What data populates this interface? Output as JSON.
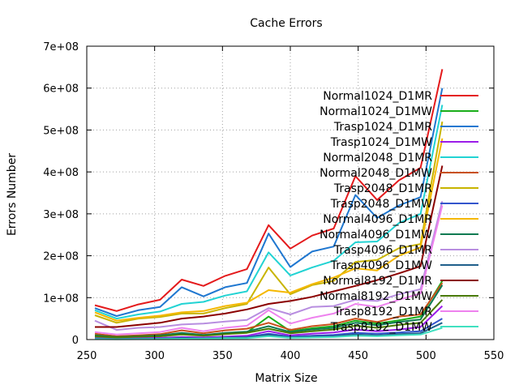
{
  "chart_data": {
    "type": "line",
    "title": "Cache Errors",
    "xlabel": "Matrix Size",
    "ylabel": "Errors Number",
    "xlim": [
      250,
      550
    ],
    "ylim": [
      0,
      700000000
    ],
    "xticks": [
      250,
      300,
      350,
      400,
      450,
      500,
      550
    ],
    "xtick_labels": [
      "250",
      "300",
      "350",
      "400",
      "450",
      "500",
      "550"
    ],
    "yticks": [
      0,
      100000000,
      200000000,
      300000000,
      400000000,
      500000000,
      600000000,
      700000000
    ],
    "ytick_labels": [
      "0",
      "1e+08",
      "2e+08",
      "3e+08",
      "4e+08",
      "5e+08",
      "6e+08",
      "7e+08"
    ],
    "grid": true,
    "legend_position": "right",
    "x": [
      256,
      272,
      288,
      304,
      320,
      336,
      352,
      368,
      384,
      400,
      416,
      432,
      448,
      464,
      480,
      496,
      512
    ],
    "series": [
      {
        "name": "Normal1024_D1MR",
        "color": "#e41a1c",
        "values": [
          82000000,
          68000000,
          84000000,
          95000000,
          143000000,
          128000000,
          152000000,
          168000000,
          273000000,
          217000000,
          248000000,
          265000000,
          390000000,
          333000000,
          380000000,
          410000000,
          645000000
        ]
      },
      {
        "name": "Normal1024_D1MW",
        "color": "#1aae1a",
        "values": [
          6000000,
          4000000,
          6000000,
          8000000,
          13000000,
          10000000,
          14000000,
          17000000,
          55000000,
          20000000,
          27000000,
          32000000,
          45000000,
          38000000,
          46000000,
          55000000,
          140000000
        ]
      },
      {
        "name": "Trasp1024_D1MR",
        "color": "#1f77d0",
        "values": [
          75000000,
          56000000,
          70000000,
          78000000,
          125000000,
          103000000,
          125000000,
          135000000,
          253000000,
          173000000,
          210000000,
          222000000,
          345000000,
          290000000,
          320000000,
          340000000,
          600000000
        ]
      },
      {
        "name": "Trasp1024_D1MW",
        "color": "#9b1de8",
        "values": [
          3000000,
          2000000,
          3000000,
          4000000,
          6000000,
          5000000,
          7000000,
          9000000,
          20000000,
          10000000,
          14000000,
          17000000,
          24000000,
          20000000,
          24000000,
          30000000,
          80000000
        ]
      },
      {
        "name": "Normal2048_D1MR",
        "color": "#22d3d3",
        "values": [
          70000000,
          50000000,
          60000000,
          67000000,
          85000000,
          90000000,
          105000000,
          115000000,
          208000000,
          153000000,
          172000000,
          188000000,
          232000000,
          234000000,
          278000000,
          300000000,
          560000000
        ]
      },
      {
        "name": "Normal2048_D1MW",
        "color": "#c8501a",
        "values": [
          14000000,
          8000000,
          10000000,
          13000000,
          22000000,
          15000000,
          22000000,
          26000000,
          40000000,
          23000000,
          32000000,
          37000000,
          50000000,
          42000000,
          55000000,
          60000000,
          135000000
        ]
      },
      {
        "name": "Trasp2048_D1MR",
        "color": "#c8b400",
        "values": [
          58000000,
          40000000,
          50000000,
          54000000,
          62000000,
          62000000,
          75000000,
          85000000,
          172000000,
          108000000,
          130000000,
          140000000,
          185000000,
          190000000,
          218000000,
          228000000,
          520000000
        ]
      },
      {
        "name": "Trasp2048_D1MW",
        "color": "#3355cc",
        "values": [
          2000000,
          1500000,
          2000000,
          2500000,
          4000000,
          3000000,
          5000000,
          6000000,
          14000000,
          7000000,
          9000000,
          11000000,
          16000000,
          14000000,
          17000000,
          20000000,
          50000000
        ]
      },
      {
        "name": "Normal4096_D1MR",
        "color": "#f5b800",
        "values": [
          65000000,
          45000000,
          52000000,
          57000000,
          65000000,
          68000000,
          80000000,
          88000000,
          118000000,
          112000000,
          132000000,
          148000000,
          170000000,
          165000000,
          200000000,
          220000000,
          480000000
        ]
      },
      {
        "name": "Normal4096_D1MW",
        "color": "#0e7a52",
        "values": [
          10000000,
          6000000,
          8000000,
          10000000,
          16000000,
          11000000,
          16000000,
          19000000,
          32000000,
          18000000,
          24000000,
          28000000,
          40000000,
          34000000,
          42000000,
          48000000,
          130000000
        ]
      },
      {
        "name": "Trasp4096_D1MR",
        "color": "#b88ee0",
        "values": [
          45000000,
          23000000,
          28000000,
          30000000,
          36000000,
          38000000,
          43000000,
          47000000,
          75000000,
          60000000,
          78000000,
          80000000,
          95000000,
          92000000,
          108000000,
          120000000,
          330000000
        ]
      },
      {
        "name": "Trasp4096_D1MW",
        "color": "#1f5f8b",
        "values": [
          1500000,
          1000000,
          1500000,
          2000000,
          3000000,
          2500000,
          4000000,
          5000000,
          11000000,
          5000000,
          7000000,
          8000000,
          12000000,
          10000000,
          13000000,
          15000000,
          40000000
        ]
      },
      {
        "name": "Normal8192_D1MR",
        "color": "#8b0000",
        "values": [
          30000000,
          30000000,
          35000000,
          40000000,
          50000000,
          55000000,
          62000000,
          72000000,
          85000000,
          92000000,
          102000000,
          115000000,
          128000000,
          142000000,
          158000000,
          175000000,
          415000000
        ]
      },
      {
        "name": "Normal8192_D1MW",
        "color": "#4a7a00",
        "values": [
          8000000,
          5000000,
          7000000,
          8000000,
          12000000,
          9000000,
          13000000,
          16000000,
          26000000,
          15000000,
          20000000,
          24000000,
          33000000,
          28000000,
          35000000,
          40000000,
          95000000
        ]
      },
      {
        "name": "Trasp8192_D1MR",
        "color": "#ee82ee",
        "values": [
          18000000,
          12000000,
          15000000,
          18000000,
          28000000,
          20000000,
          28000000,
          33000000,
          70000000,
          38000000,
          52000000,
          62000000,
          85000000,
          78000000,
          95000000,
          110000000,
          320000000
        ]
      },
      {
        "name": "Trasp8192_D1MW",
        "color": "#40e0c0",
        "values": [
          1000000,
          800000,
          1000000,
          1500000,
          2000000,
          2000000,
          3000000,
          3500000,
          8000000,
          4000000,
          5000000,
          6000000,
          9000000,
          8000000,
          10000000,
          12000000,
          28000000
        ]
      }
    ]
  }
}
